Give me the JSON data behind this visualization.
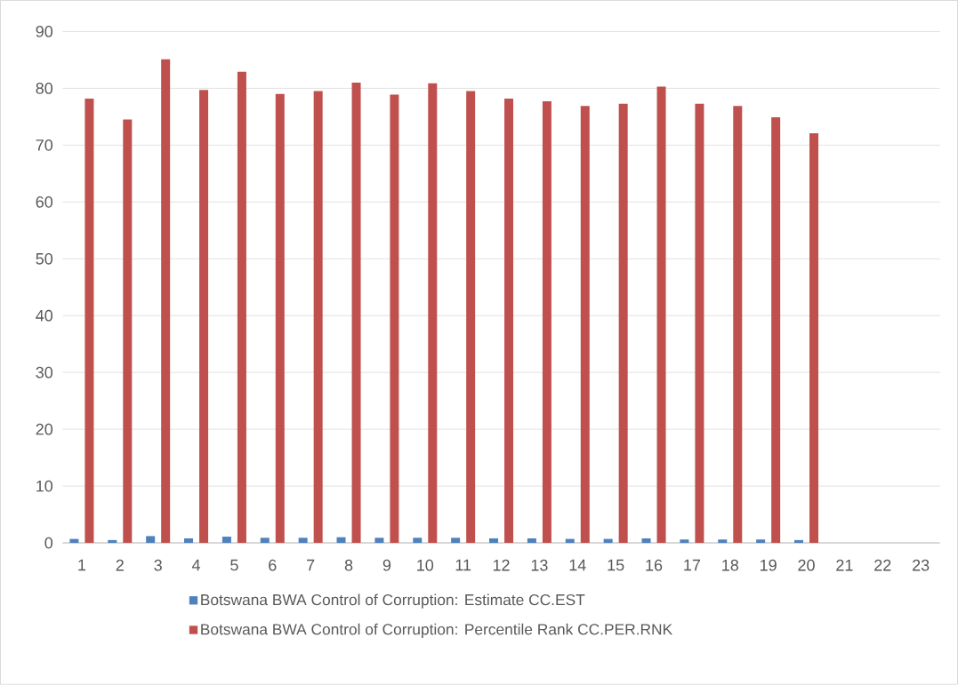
{
  "chart_data": {
    "type": "bar",
    "categories": [
      "1",
      "2",
      "3",
      "4",
      "5",
      "6",
      "7",
      "8",
      "9",
      "10",
      "11",
      "12",
      "13",
      "14",
      "15",
      "16",
      "17",
      "18",
      "19",
      "20",
      "21",
      "22",
      "23"
    ],
    "series": [
      {
        "name": "Botswana BWA Control of Corruption: Estimate CC.EST",
        "color": "#4f81bd",
        "values": [
          0.7,
          0.5,
          1.2,
          0.8,
          1.1,
          0.9,
          0.9,
          1.0,
          0.9,
          0.9,
          0.9,
          0.8,
          0.8,
          0.7,
          0.7,
          0.8,
          0.6,
          0.6,
          0.6,
          0.5,
          null,
          null,
          null
        ]
      },
      {
        "name": "Botswana BWA Control of Corruption: Percentile Rank CC.PER.RNK",
        "color": "#c0504d",
        "values": [
          78.2,
          74.5,
          85.1,
          79.7,
          82.9,
          79.0,
          79.5,
          81.0,
          78.9,
          80.9,
          79.5,
          78.2,
          77.7,
          76.9,
          77.3,
          80.3,
          77.3,
          76.9,
          74.9,
          72.1,
          null,
          null,
          null
        ]
      }
    ],
    "ylim": [
      0,
      90
    ],
    "yticks": [
      0,
      10,
      20,
      30,
      40,
      50,
      60,
      70,
      80,
      90
    ],
    "grid": "y",
    "legend": "bottom"
  }
}
